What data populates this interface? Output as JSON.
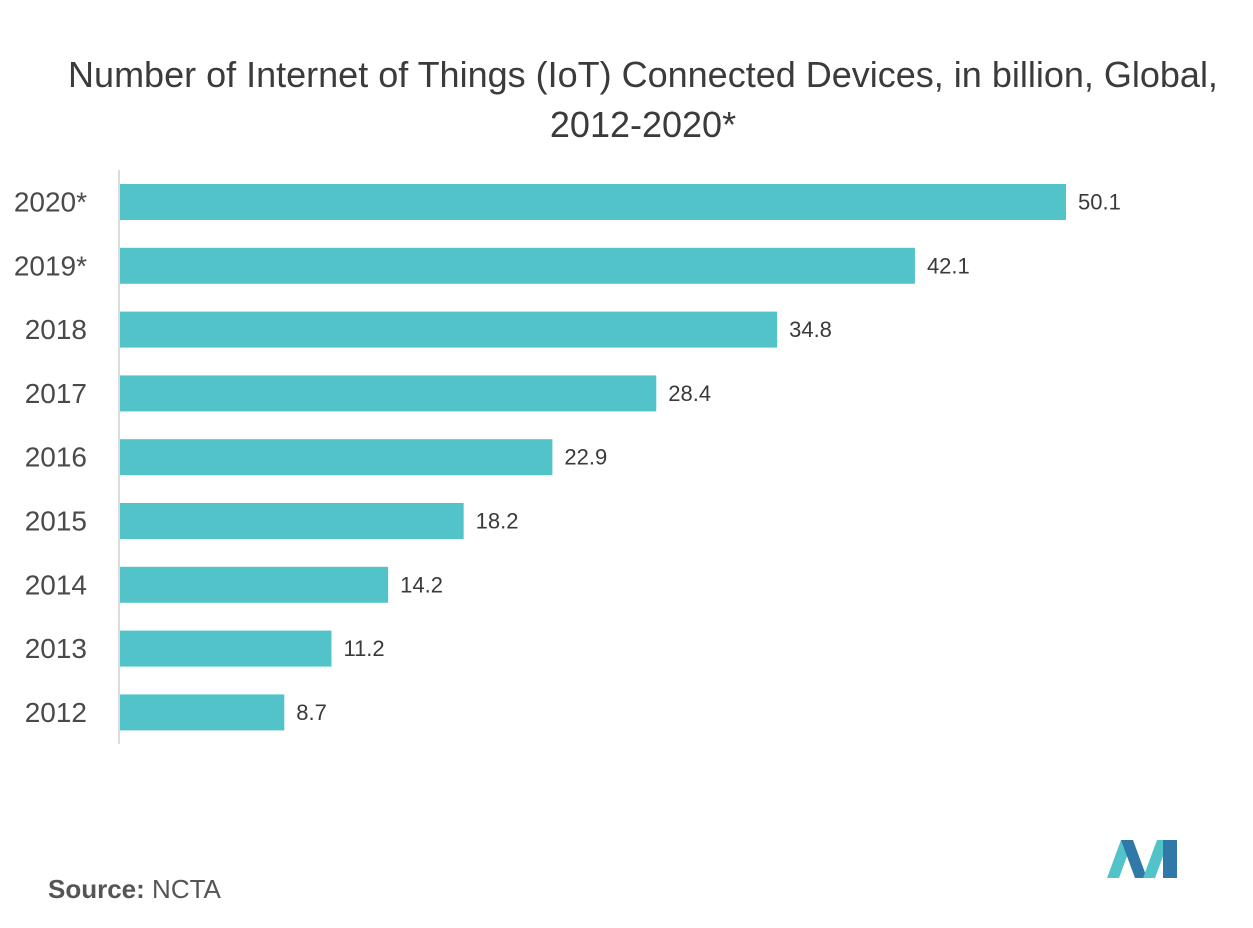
{
  "title": "Number of Internet of Things (IoT) Connected Devices, in billion, Global, 2012-2020*",
  "source": {
    "label": "Source:",
    "value": "NCTA"
  },
  "colors": {
    "bar": "#52c4c9",
    "axis": "#d0d0d0",
    "logo_dark": "#2f78a8",
    "logo_light": "#52c4c9"
  },
  "chart_data": {
    "type": "bar",
    "orientation": "horizontal",
    "title": "Number of Internet of Things (IoT) Connected Devices, in billion, Global, 2012-2020*",
    "categories": [
      "2020*",
      "2019*",
      "2018",
      "2017",
      "2016",
      "2015",
      "2014",
      "2013",
      "2012"
    ],
    "values": [
      50.1,
      42.1,
      34.8,
      28.4,
      22.9,
      18.2,
      14.2,
      11.2,
      8.7
    ],
    "value_labels": [
      "50.1",
      "42.1",
      "34.8",
      "28.4",
      "22.9",
      "18.2",
      "14.2",
      "11.2",
      "8.7"
    ],
    "xlabel": "",
    "ylabel": "",
    "xlim": [
      0,
      50.1
    ],
    "grid": false,
    "legend": "none",
    "data_labels": true
  }
}
